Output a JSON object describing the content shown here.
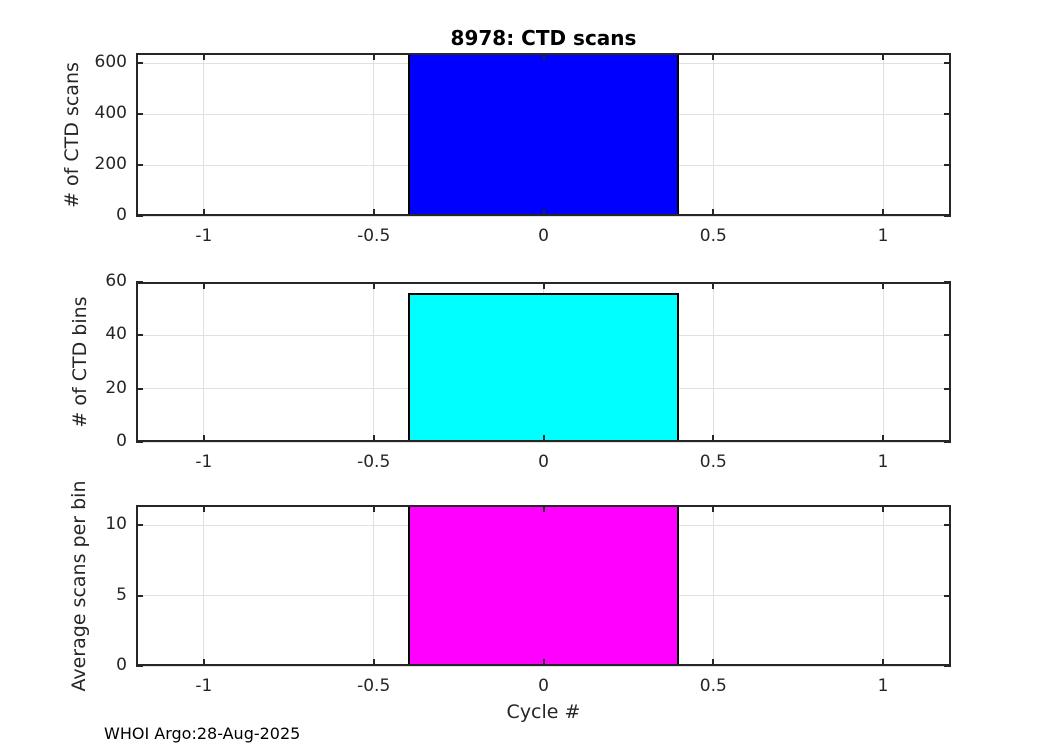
{
  "figure": {
    "title": "8978: CTD scans",
    "xlabel": "Cycle #",
    "footer": "WHOI Argo:28-Aug-2025",
    "background_color": "#ffffff",
    "axis_color": "#262626",
    "grid_color": "#e0e0e0",
    "bar_edge_color": "#000000"
  },
  "chart_data": [
    {
      "type": "bar",
      "title": "8978: CTD scans",
      "ylabel": "# of CTD scans",
      "xlabel": "",
      "x": [
        0
      ],
      "values": [
        640
      ],
      "bar_color": "#0000ff",
      "bar_width": 0.8,
      "xlim": [
        -1.2,
        1.2
      ],
      "ylim": [
        0,
        640
      ],
      "xticks": [
        -1,
        -0.5,
        0,
        0.5,
        1
      ],
      "yticks": [
        0,
        200,
        400,
        600
      ],
      "grid": true,
      "legend": "none"
    },
    {
      "type": "bar",
      "title": "",
      "ylabel": "# of CTD bins",
      "xlabel": "",
      "x": [
        0
      ],
      "values": [
        56
      ],
      "bar_color": "#00ffff",
      "bar_width": 0.8,
      "xlim": [
        -1.2,
        1.2
      ],
      "ylim": [
        0,
        60
      ],
      "xticks": [
        -1,
        -0.5,
        0,
        0.5,
        1
      ],
      "yticks": [
        0,
        20,
        40,
        60
      ],
      "grid": true,
      "legend": "none"
    },
    {
      "type": "bar",
      "title": "",
      "ylabel": "Average scans per bin",
      "xlabel": "Cycle #",
      "x": [
        0
      ],
      "values": [
        11.43
      ],
      "bar_color": "#ff00ff",
      "bar_width": 0.8,
      "xlim": [
        -1.2,
        1.2
      ],
      "ylim": [
        0,
        11.43
      ],
      "xticks": [
        -1,
        -0.5,
        0,
        0.5,
        1
      ],
      "yticks": [
        0,
        5,
        10
      ],
      "grid": true,
      "legend": "none"
    }
  ]
}
